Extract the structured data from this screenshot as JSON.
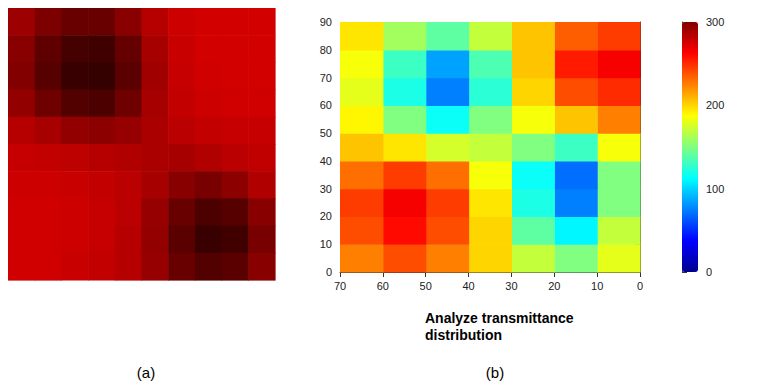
{
  "chart_data": [
    {
      "type": "image",
      "label": "(a)",
      "tick_labels": false,
      "clim": [
        0,
        255
      ],
      "pixels": [
        [
          150,
          120,
          100,
          100,
          130,
          180,
          215,
          225,
          225,
          225
        ],
        [
          130,
          90,
          60,
          55,
          95,
          160,
          210,
          225,
          225,
          225
        ],
        [
          125,
          80,
          45,
          40,
          85,
          155,
          205,
          220,
          225,
          225
        ],
        [
          140,
          105,
          75,
          70,
          105,
          160,
          200,
          215,
          220,
          220
        ],
        [
          180,
          160,
          140,
          135,
          145,
          165,
          185,
          200,
          205,
          205
        ],
        [
          205,
          200,
          190,
          180,
          170,
          165,
          160,
          170,
          185,
          195
        ],
        [
          215,
          215,
          210,
          200,
          185,
          160,
          130,
          115,
          135,
          170
        ],
        [
          220,
          220,
          215,
          205,
          185,
          145,
          100,
          70,
          80,
          130
        ],
        [
          220,
          220,
          215,
          205,
          180,
          140,
          85,
          45,
          55,
          115
        ],
        [
          220,
          220,
          210,
          200,
          180,
          145,
          100,
          75,
          85,
          130
        ]
      ]
    },
    {
      "type": "heatmap",
      "label": "(b)",
      "annotation": "Analyze transmittance distribution",
      "x_edges": [
        0,
        10,
        20,
        30,
        40,
        50,
        60,
        70
      ],
      "y_edges": [
        0,
        10,
        20,
        30,
        40,
        50,
        60,
        70,
        80,
        90
      ],
      "cells": [
        [
          180,
          150,
          170,
          200,
          225,
          240,
          225
        ],
        [
          170,
          110,
          140,
          200,
          240,
          260,
          240
        ],
        [
          150,
          75,
          120,
          195,
          245,
          265,
          245
        ],
        [
          150,
          70,
          115,
          185,
          230,
          245,
          230
        ],
        [
          185,
          130,
          150,
          170,
          175,
          195,
          205
        ],
        [
          225,
          205,
          185,
          150,
          115,
          150,
          190
        ],
        [
          250,
          240,
          200,
          125,
          75,
          120,
          180
        ],
        [
          265,
          255,
          205,
          135,
          85,
          130,
          185
        ],
        [
          245,
          235,
          205,
          170,
          140,
          160,
          195
        ]
      ],
      "xlim": [
        0,
        70
      ],
      "xticks": [
        0,
        10,
        20,
        30,
        40,
        50,
        60,
        70
      ],
      "ylim": [
        0,
        90
      ],
      "yticks": [
        0,
        10,
        20,
        30,
        40,
        50,
        60,
        70,
        80,
        90
      ],
      "zlim": [
        0,
        300
      ],
      "zticks": [
        0,
        100,
        200,
        300
      ]
    }
  ]
}
